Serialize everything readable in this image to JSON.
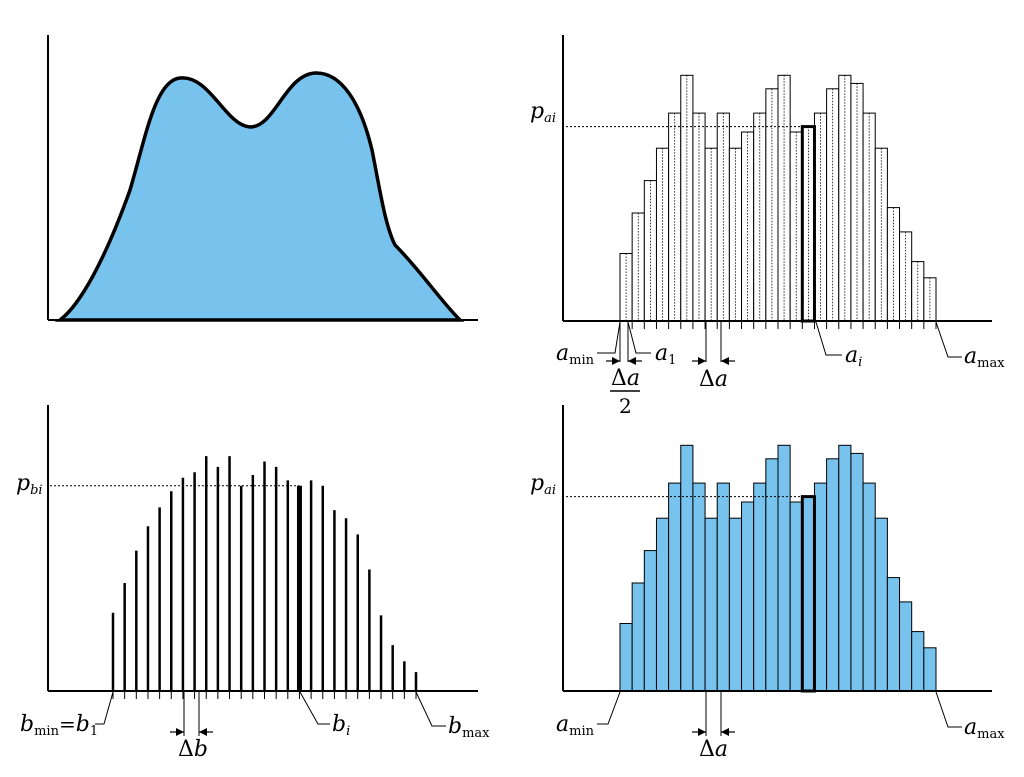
{
  "colors": {
    "fill_blue": "#78c3ee",
    "stroke": "#000000"
  },
  "labels": {
    "tr_p": "p",
    "tr_p_sub": "ai",
    "tr_amin": "a",
    "tr_amin_sub": "min",
    "tr_a1": "a",
    "tr_a1_sub": "1",
    "tr_ai": "a",
    "tr_ai_sub": "i",
    "tr_amax": "a",
    "tr_amax_sub": "max",
    "tr_half_delta": "Δ",
    "tr_half_a": "a",
    "tr_half_den": "2",
    "tr_delta": "Δ",
    "tr_delta_a": "a",
    "bl_p": "p",
    "bl_p_sub": "bi",
    "bl_bmin": "b",
    "bl_bmin_sub": "min",
    "bl_eq": "=",
    "bl_b1": "b",
    "bl_b1_sub": "1",
    "bl_bi": "b",
    "bl_bi_sub": "i",
    "bl_bmax": "b",
    "bl_bmax_sub": "max",
    "bl_delta": "Δ",
    "bl_delta_b": "b",
    "br_p": "p",
    "br_p_sub": "ai",
    "br_amin": "a",
    "br_amin_sub": "min",
    "br_amax": "a",
    "br_amax_sub": "max",
    "br_delta": "Δ",
    "br_delta_a": "a"
  },
  "histogram": {
    "bar_heights": [
      0.25,
      0.4,
      0.52,
      0.64,
      0.77,
      0.91,
      0.77,
      0.64,
      0.77,
      0.64,
      0.7,
      0.77,
      0.86,
      0.91,
      0.7,
      0.72,
      0.77,
      0.86,
      0.91,
      0.88,
      0.77,
      0.64,
      0.42,
      0.33,
      0.22,
      0.16
    ],
    "highlight_index": 15,
    "p_level": 0.72
  },
  "sticks": {
    "heights": [
      0.29,
      0.4,
      0.52,
      0.61,
      0.68,
      0.74,
      0.79,
      0.81,
      0.87,
      0.83,
      0.87,
      0.76,
      0.8,
      0.85,
      0.83,
      0.78,
      0.76,
      0.78,
      0.76,
      0.67,
      0.64,
      0.58,
      0.45,
      0.28,
      0.17,
      0.11,
      0.07
    ],
    "highlight_index": 16,
    "p_level": 0.76
  }
}
